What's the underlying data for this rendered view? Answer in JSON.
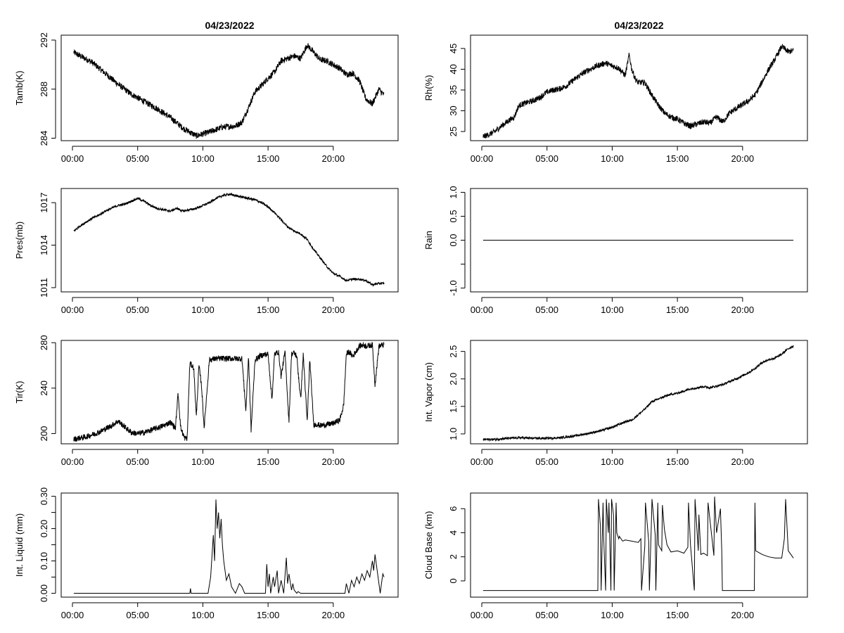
{
  "chart_data": [
    {
      "type": "line",
      "title": "04/23/2022",
      "xlabel": "",
      "ylabel": "Tamb(K)",
      "xlim": [
        0,
        24
      ],
      "ylim": [
        283.8,
        292.4
      ],
      "x_ticks": [
        0,
        5,
        10,
        15,
        20
      ],
      "x_tick_labels": [
        "00:00",
        "05:00",
        "10:00",
        "15:00",
        "20:00"
      ],
      "y_ticks": [
        284,
        288,
        292
      ],
      "y_tick_labels": [
        "284",
        "288",
        "292"
      ],
      "noise": 0.25,
      "series": [
        {
          "name": "Tamb(K)",
          "x": [
            0.1,
            0.6,
            1.5,
            2.5,
            3.5,
            4.5,
            5.5,
            6.5,
            7.5,
            8.5,
            9.5,
            10.5,
            11.5,
            12.5,
            13.0,
            13.5,
            14.0,
            14.5,
            15.0,
            15.5,
            16.0,
            16.5,
            17.0,
            17.5,
            18.0,
            18.5,
            19.0,
            19.5,
            20.0,
            20.5,
            21.0,
            21.5,
            22.0,
            22.5,
            23.0,
            23.5,
            23.9
          ],
          "values": [
            291.0,
            290.7,
            290.2,
            289.3,
            288.4,
            287.6,
            287.0,
            286.4,
            285.7,
            284.8,
            284.2,
            284.5,
            284.9,
            285.0,
            285.3,
            286.5,
            287.8,
            288.3,
            288.9,
            289.4,
            290.3,
            290.5,
            290.7,
            290.5,
            291.6,
            291.0,
            290.4,
            290.3,
            290.0,
            289.7,
            289.2,
            289.3,
            288.7,
            287.2,
            286.8,
            288.0,
            287.5
          ]
        }
      ]
    },
    {
      "type": "line",
      "title": "04/23/2022",
      "xlabel": "",
      "ylabel": "Rh(%)",
      "xlim": [
        0,
        24
      ],
      "ylim": [
        22.8,
        48.2
      ],
      "x_ticks": [
        0,
        5,
        10,
        15,
        20
      ],
      "x_tick_labels": [
        "00:00",
        "05:00",
        "10:00",
        "15:00",
        "20:00"
      ],
      "y_ticks": [
        25,
        30,
        35,
        40,
        45
      ],
      "y_tick_labels": [
        "25",
        "30",
        "35",
        "40",
        "45"
      ],
      "noise": 0.7,
      "series": [
        {
          "name": "Rh(%)",
          "x": [
            0.1,
            0.5,
            1.0,
            1.5,
            2.0,
            2.5,
            2.8,
            3.0,
            3.5,
            4.0,
            4.5,
            5.0,
            5.5,
            6.0,
            6.5,
            7.0,
            7.5,
            8.0,
            8.5,
            9.0,
            9.5,
            10.0,
            10.5,
            11.0,
            11.3,
            11.5,
            11.8,
            12.0,
            12.5,
            13.0,
            13.5,
            14.0,
            14.5,
            15.0,
            15.5,
            16.0,
            16.5,
            17.0,
            17.5,
            18.0,
            18.5,
            19.0,
            19.5,
            20.0,
            20.5,
            21.0,
            21.5,
            22.0,
            22.5,
            23.0,
            23.5,
            23.9
          ],
          "values": [
            23.8,
            24.2,
            25.0,
            26.3,
            27.5,
            28.5,
            31.0,
            31.5,
            32.0,
            32.5,
            33.3,
            34.5,
            35.0,
            35.3,
            36.0,
            37.3,
            38.5,
            39.5,
            40.3,
            41.0,
            41.5,
            40.8,
            40.3,
            38.5,
            43.5,
            40.0,
            37.5,
            36.8,
            36.8,
            34.0,
            31.5,
            29.5,
            28.5,
            28.0,
            27.0,
            26.3,
            26.8,
            27.3,
            27.0,
            28.5,
            27.3,
            29.5,
            30.5,
            31.5,
            32.5,
            34.0,
            37.0,
            40.0,
            42.5,
            45.5,
            44.2,
            44.5
          ]
        }
      ]
    },
    {
      "type": "line",
      "title": "",
      "xlabel": "",
      "ylabel": "Pres(mb)",
      "xlim": [
        0,
        24
      ],
      "ylim": [
        1010.7,
        1018.0
      ],
      "x_ticks": [
        0,
        5,
        10,
        15,
        20
      ],
      "x_tick_labels": [
        "00:00",
        "05:00",
        "10:00",
        "15:00",
        "20:00"
      ],
      "y_ticks": [
        1011,
        1014,
        1017
      ],
      "y_tick_labels": [
        "1011",
        "1014",
        "1017"
      ],
      "noise": 0.08,
      "series": [
        {
          "name": "Pres(mb)",
          "x": [
            0.1,
            0.5,
            1.0,
            1.5,
            2.0,
            2.5,
            3.0,
            3.5,
            4.0,
            4.5,
            5.0,
            5.5,
            6.0,
            6.5,
            7.0,
            7.5,
            8.0,
            8.5,
            9.0,
            9.5,
            10.0,
            10.5,
            11.0,
            11.5,
            12.0,
            12.5,
            13.0,
            13.5,
            14.0,
            14.5,
            15.0,
            15.5,
            16.0,
            16.5,
            17.0,
            17.5,
            18.0,
            18.5,
            19.0,
            19.5,
            20.0,
            20.5,
            21.0,
            21.5,
            22.0,
            22.5,
            23.0,
            23.5,
            23.9
          ],
          "values": [
            1015.0,
            1015.3,
            1015.6,
            1015.9,
            1016.1,
            1016.4,
            1016.6,
            1016.8,
            1016.9,
            1017.1,
            1017.3,
            1017.1,
            1016.8,
            1016.6,
            1016.5,
            1016.4,
            1016.6,
            1016.4,
            1016.5,
            1016.6,
            1016.8,
            1017.0,
            1017.3,
            1017.5,
            1017.6,
            1017.5,
            1017.4,
            1017.3,
            1017.2,
            1017.0,
            1016.7,
            1016.3,
            1015.8,
            1015.3,
            1015.0,
            1014.8,
            1014.4,
            1013.7,
            1013.1,
            1012.5,
            1012.0,
            1011.8,
            1011.5,
            1011.6,
            1011.6,
            1011.5,
            1011.2,
            1011.3,
            1011.3
          ]
        }
      ]
    },
    {
      "type": "line",
      "title": "",
      "xlabel": "",
      "ylabel": "Rain",
      "xlim": [
        0,
        24
      ],
      "ylim": [
        -1.08,
        1.08
      ],
      "x_ticks": [
        0,
        5,
        10,
        15,
        20
      ],
      "x_tick_labels": [
        "00:00",
        "05:00",
        "10:00",
        "15:00",
        "20:00"
      ],
      "y_ticks": [
        -1.0,
        -0.5,
        0.0,
        0.5,
        1.0
      ],
      "y_tick_labels": [
        "-1.0",
        "",
        "0.0",
        "0.5",
        "1.0"
      ],
      "noise": 0,
      "series": [
        {
          "name": "Rain",
          "x": [
            0.1,
            23.9
          ],
          "values": [
            0.0,
            0.0
          ]
        }
      ]
    },
    {
      "type": "line",
      "title": "",
      "xlabel": "",
      "ylabel": "Tir(K)",
      "xlim": [
        0,
        24
      ],
      "ylim": [
        191,
        282
      ],
      "x_ticks": [
        0,
        5,
        10,
        15,
        20
      ],
      "x_tick_labels": [
        "00:00",
        "05:00",
        "10:00",
        "15:00",
        "20:00"
      ],
      "y_ticks": [
        200,
        240,
        280
      ],
      "y_tick_labels": [
        "200",
        "240",
        "280"
      ],
      "noise": 2.5,
      "series": [
        {
          "name": "Tir(K)",
          "x": [
            0.1,
            0.5,
            1.0,
            1.5,
            2.0,
            2.5,
            3.0,
            3.5,
            4.0,
            4.5,
            5.0,
            5.5,
            6.0,
            6.5,
            7.0,
            7.5,
            7.9,
            8.1,
            8.3,
            8.6,
            8.8,
            9.0,
            9.3,
            9.5,
            9.7,
            9.9,
            10.1,
            10.5,
            11.0,
            11.5,
            12.0,
            12.5,
            13.0,
            13.3,
            13.5,
            13.7,
            14.0,
            14.5,
            15.0,
            15.3,
            15.5,
            15.8,
            16.0,
            16.3,
            16.6,
            16.8,
            17.0,
            17.2,
            17.5,
            17.7,
            18.0,
            18.2,
            18.5,
            18.8,
            19.0,
            19.5,
            20.0,
            20.5,
            20.8,
            21.0,
            21.2,
            21.5,
            22.0,
            22.3,
            22.5,
            23.0,
            23.2,
            23.5,
            23.8,
            23.9
          ],
          "values": [
            195,
            196,
            197,
            199,
            201,
            204,
            207,
            211,
            206,
            201,
            200,
            201,
            203,
            205,
            207,
            210,
            205,
            236,
            205,
            196,
            196,
            262,
            258,
            215,
            260,
            242,
            205,
            265,
            266,
            266,
            266,
            266,
            266,
            220,
            268,
            203,
            265,
            269,
            270,
            230,
            270,
            272,
            250,
            272,
            210,
            270,
            271,
            268,
            230,
            270,
            210,
            265,
            208,
            208,
            207,
            208,
            209,
            212,
            225,
            270,
            272,
            268,
            277,
            278,
            277,
            278,
            243,
            277,
            278,
            278
          ]
        }
      ]
    },
    {
      "type": "line",
      "title": "",
      "xlabel": "",
      "ylabel": "Int. Vapor (cm)",
      "xlim": [
        0,
        24
      ],
      "ylim": [
        0.82,
        2.7
      ],
      "x_ticks": [
        0,
        5,
        10,
        15,
        20
      ],
      "x_tick_labels": [
        "00:00",
        "05:00",
        "10:00",
        "15:00",
        "20:00"
      ],
      "y_ticks": [
        1.0,
        1.5,
        2.0,
        2.5
      ],
      "y_tick_labels": [
        "1.0",
        "1.5",
        "2.0",
        "2.5"
      ],
      "noise": 0.02,
      "series": [
        {
          "name": "Int. Vapor (cm)",
          "x": [
            0.1,
            1.0,
            2.0,
            3.0,
            4.0,
            5.0,
            6.0,
            7.0,
            8.0,
            9.0,
            10.0,
            11.0,
            11.5,
            12.0,
            12.5,
            13.0,
            13.5,
            14.0,
            14.5,
            15.0,
            15.5,
            16.0,
            16.5,
            17.0,
            17.5,
            18.0,
            18.5,
            19.0,
            19.5,
            20.0,
            20.5,
            21.0,
            21.5,
            22.0,
            22.5,
            23.0,
            23.5,
            23.9
          ],
          "values": [
            0.9,
            0.9,
            0.92,
            0.93,
            0.92,
            0.92,
            0.93,
            0.96,
            1.0,
            1.05,
            1.12,
            1.22,
            1.25,
            1.35,
            1.45,
            1.58,
            1.63,
            1.68,
            1.72,
            1.74,
            1.78,
            1.82,
            1.84,
            1.86,
            1.84,
            1.87,
            1.9,
            1.95,
            2.0,
            2.06,
            2.12,
            2.2,
            2.3,
            2.35,
            2.38,
            2.45,
            2.55,
            2.6
          ]
        }
      ]
    },
    {
      "type": "line",
      "title": "",
      "xlabel": "",
      "ylabel": "Int. Liquid (mm)",
      "xlim": [
        0,
        24
      ],
      "ylim": [
        -0.012,
        0.31
      ],
      "x_ticks": [
        0,
        5,
        10,
        15,
        20
      ],
      "x_tick_labels": [
        "00:00",
        "05:00",
        "10:00",
        "15:00",
        "20:00"
      ],
      "y_ticks": [
        0.0,
        0.05,
        0.1,
        0.15,
        0.2,
        0.25,
        0.3
      ],
      "y_tick_labels": [
        "0.00",
        "",
        "0.10",
        "",
        "0.20",
        "",
        "0.30"
      ],
      "noise": 0,
      "series": [
        {
          "name": "Int. Liquid (mm)",
          "x": [
            0.1,
            9.0,
            9.05,
            9.1,
            10.4,
            10.6,
            10.8,
            10.9,
            11.0,
            11.1,
            11.2,
            11.3,
            11.4,
            11.5,
            11.6,
            11.8,
            12.0,
            12.2,
            12.5,
            12.8,
            13.0,
            13.2,
            14.8,
            14.9,
            15.0,
            15.1,
            15.2,
            15.4,
            15.5,
            15.7,
            15.8,
            16.0,
            16.2,
            16.4,
            16.5,
            16.6,
            16.8,
            16.9,
            17.0,
            17.2,
            17.3,
            17.5,
            20.9,
            21.0,
            21.2,
            21.4,
            21.6,
            21.8,
            22.0,
            22.2,
            22.4,
            22.6,
            22.8,
            23.0,
            23.1,
            23.2,
            23.6,
            23.7,
            23.8,
            23.9
          ],
          "values": [
            0.0,
            0.0,
            0.015,
            0.0,
            0.0,
            0.05,
            0.18,
            0.1,
            0.29,
            0.2,
            0.25,
            0.17,
            0.23,
            0.15,
            0.1,
            0.04,
            0.06,
            0.02,
            0.0,
            0.03,
            0.02,
            0.0,
            0.0,
            0.09,
            0.02,
            0.06,
            0.0,
            0.05,
            0.02,
            0.07,
            0.0,
            0.04,
            0.0,
            0.11,
            0.03,
            0.06,
            0.01,
            0.03,
            0.01,
            0.0,
            0.005,
            0.0,
            0.0,
            0.03,
            0.0,
            0.04,
            0.02,
            0.05,
            0.03,
            0.06,
            0.04,
            0.07,
            0.05,
            0.1,
            0.07,
            0.12,
            0.0,
            0.03,
            0.06,
            0.05
          ]
        }
      ]
    },
    {
      "type": "line",
      "title": "",
      "xlabel": "",
      "ylabel": "Cloud Base (km)",
      "xlim": [
        0,
        24
      ],
      "ylim": [
        -1.35,
        7.3
      ],
      "x_ticks": [
        0,
        5,
        10,
        15,
        20
      ],
      "x_tick_labels": [
        "00:00",
        "05:00",
        "10:00",
        "15:00",
        "20:00"
      ],
      "y_ticks": [
        0,
        2,
        4,
        6
      ],
      "y_tick_labels": [
        "0",
        "2",
        "4",
        "6"
      ],
      "noise": 0,
      "series": [
        {
          "name": "Cloud Base (km)",
          "x": [
            0.1,
            8.9,
            8.95,
            9.1,
            9.15,
            9.3,
            9.35,
            9.5,
            9.55,
            9.7,
            9.75,
            9.9,
            9.95,
            10.1,
            10.15,
            10.3,
            10.35,
            10.5,
            10.55,
            10.8,
            11.0,
            11.5,
            12.0,
            12.2,
            12.25,
            12.5,
            12.55,
            12.8,
            12.85,
            13.0,
            13.05,
            13.3,
            13.35,
            13.5,
            13.55,
            13.8,
            13.85,
            14.0,
            14.2,
            14.5,
            15.0,
            15.5,
            15.8,
            15.85,
            16.0,
            16.3,
            16.35,
            16.6,
            16.65,
            16.8,
            17.0,
            17.3,
            17.35,
            17.8,
            17.85,
            18.0,
            18.3,
            18.4,
            18.45,
            19.0,
            20.5,
            20.9,
            20.95,
            21.0,
            21.5,
            22.0,
            22.5,
            23.0,
            23.2,
            23.3,
            23.5,
            23.9
          ],
          "values": [
            -0.8,
            -0.8,
            6.8,
            4.5,
            -0.8,
            6.5,
            3.5,
            -0.8,
            6.8,
            4.0,
            6.5,
            -0.8,
            6.8,
            5.5,
            -0.8,
            6.5,
            4.0,
            3.5,
            3.7,
            3.3,
            3.4,
            3.3,
            3.2,
            3.5,
            -0.8,
            2.9,
            6.5,
            3.3,
            -0.8,
            4.5,
            6.8,
            3.8,
            -0.8,
            6.5,
            3.0,
            2.5,
            6.3,
            4.3,
            3.0,
            2.4,
            2.5,
            2.3,
            2.8,
            6.5,
            3.0,
            -0.8,
            6.8,
            2.5,
            5.5,
            2.2,
            2.3,
            2.1,
            6.5,
            2.1,
            7.0,
            4.0,
            6.0,
            2.5,
            -0.8,
            -0.8,
            -0.8,
            -0.8,
            6.5,
            2.5,
            2.2,
            2.0,
            1.9,
            1.9,
            3.5,
            6.8,
            2.5,
            1.9
          ]
        }
      ]
    }
  ]
}
